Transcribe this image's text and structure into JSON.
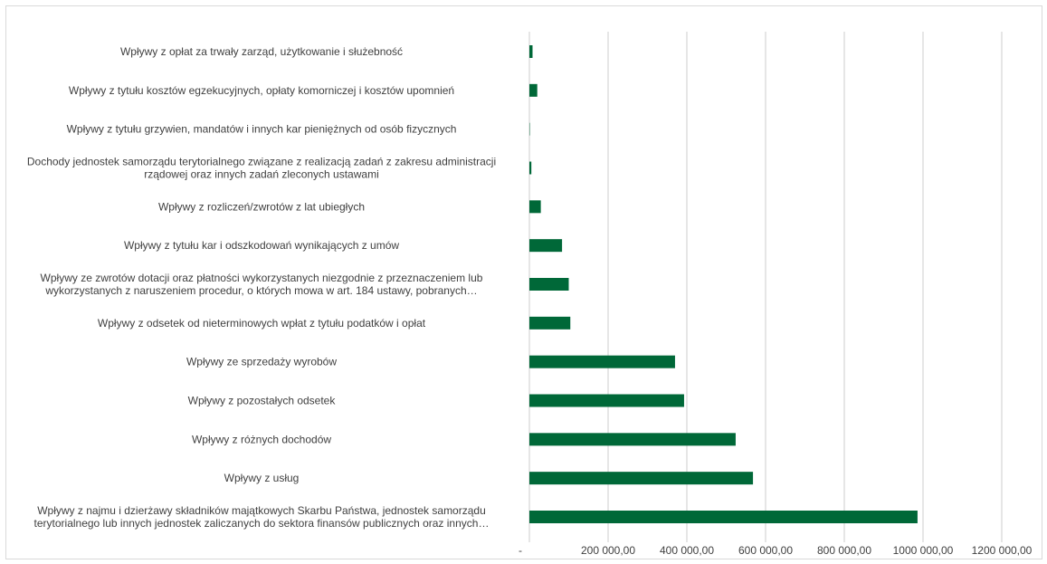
{
  "chart_data": {
    "type": "bar",
    "orientation": "horizontal",
    "title": "",
    "xlabel": "",
    "ylabel": "",
    "xlim": [
      0,
      1200000
    ],
    "grid": true,
    "legend": "none",
    "bar_color": "#006838",
    "x_tick_labels": [
      "-",
      "200 000,00",
      "400 000,00",
      "600 000,00",
      "800 000,00",
      "1000 000,00",
      "1200 000,00"
    ],
    "x_tick_values": [
      0,
      200000,
      400000,
      600000,
      800000,
      1000000,
      1200000
    ],
    "categories": [
      [
        "Wpływy z opłat za trwały zarząd, użytkowanie i służebność"
      ],
      [
        "Wpływy z tytułu kosztów egzekucyjnych, opłaty komorniczej i kosztów upomnień"
      ],
      [
        "Wpływy z tytułu grzywien, mandatów i innych kar pieniężnych od osób fizycznych"
      ],
      [
        "Dochody jednostek samorządu terytorialnego związane z realizacją zadań z zakresu administracji",
        "rządowej oraz innych zadań zleconych ustawami"
      ],
      [
        "Wpływy z rozliczeń/zwrotów z lat ubiegłych"
      ],
      [
        "Wpływy z tytułu kar i odszkodowań wynikających z umów"
      ],
      [
        "Wpływy ze zwrotów dotacji oraz płatności wykorzystanych niezgodnie z przeznaczeniem lub",
        "wykorzystanych z naruszeniem procedur, o których mowa w art. 184 ustawy, pobranych…"
      ],
      [
        "Wpływy z odsetek od nieterminowych wpłat z tytułu podatków i opłat"
      ],
      [
        "Wpływy ze sprzedaży wyrobów"
      ],
      [
        "Wpływy z pozostałych odsetek"
      ],
      [
        "Wpływy z różnych dochodów"
      ],
      [
        "Wpływy z usług"
      ],
      [
        "Wpływy z najmu i dzierżawy składników majątkowych Skarbu Państwa, jednostek samorządu",
        "terytorialnego lub innych jednostek zaliczanych do sektora finansów publicznych oraz innych…"
      ]
    ],
    "values": [
      8000,
      20000,
      1000,
      5000,
      29000,
      83000,
      100000,
      104000,
      370000,
      393000,
      524000,
      568000,
      986000
    ]
  }
}
